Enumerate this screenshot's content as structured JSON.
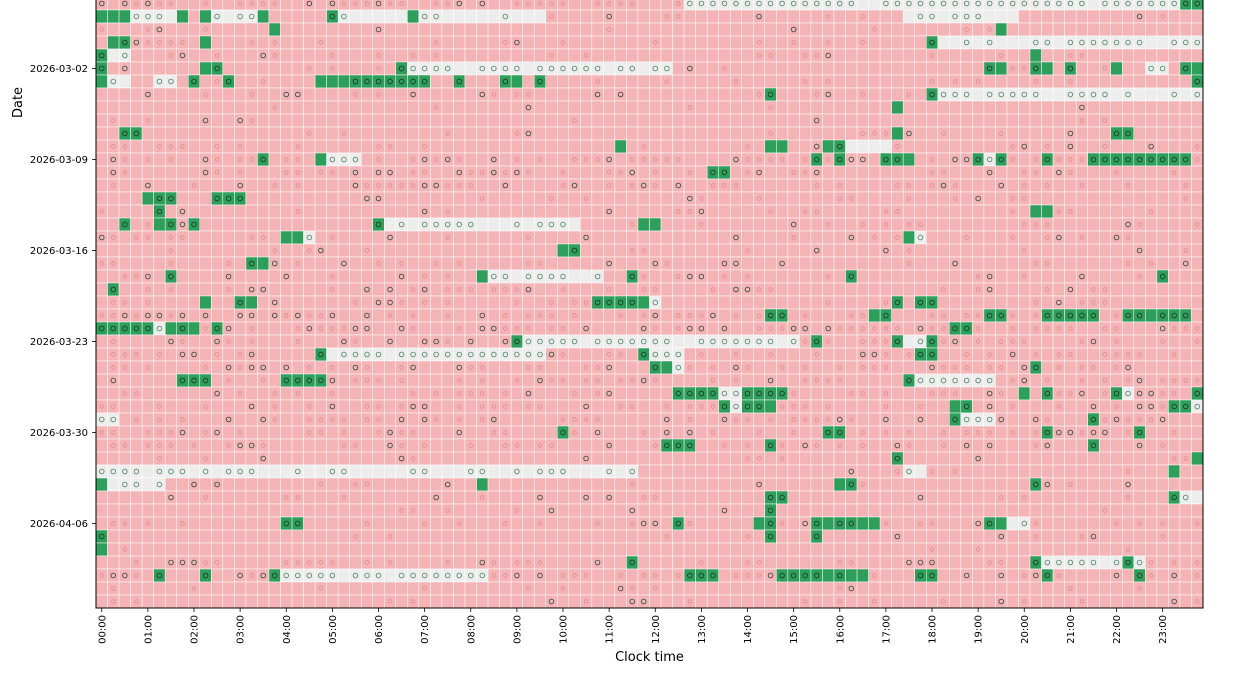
{
  "chart_data": {
    "type": "heatmap",
    "title": "",
    "xlabel": "Clock time",
    "ylabel": "Date",
    "x_tick_labels": [
      "00:00",
      "01:00",
      "02:00",
      "03:00",
      "04:00",
      "05:00",
      "06:00",
      "07:00",
      "08:00",
      "09:00",
      "10:00",
      "11:00",
      "12:00",
      "13:00",
      "14:00",
      "15:00",
      "16:00",
      "17:00",
      "18:00",
      "19:00",
      "20:00",
      "21:00",
      "22:00",
      "23:00"
    ],
    "y_tick_labels": [
      "2026-03-02",
      "2026-03-09",
      "2026-03-16",
      "2026-03-23",
      "2026-03-30",
      "2026-04-06"
    ],
    "bins_per_hour": 4,
    "n_rows": 47,
    "y_tick_rows": [
      5,
      12,
      19,
      26,
      33,
      40
    ],
    "legend": "none",
    "grid": true,
    "cell_colors": {
      "red": "#f4b3b5",
      "green": "#2e9e5b",
      "gray": "#ededed"
    },
    "marker_colors": {
      "on_red": "#e07f82",
      "on_green": "#1f3d2a",
      "on_gray": "#5a8d6c"
    },
    "states_note": "0 = red, 1 = green, 2 = gray; marker_density = fraction of cells with a small ring marker",
    "rows": [
      {
        "green": [
          [
            94,
            95
          ]
        ],
        "gray": [
          [
            51,
            94
          ]
        ],
        "marker_density": 0.6
      },
      {
        "green": [
          [
            0,
            2
          ],
          [
            7,
            7
          ],
          [
            9,
            9
          ],
          [
            14,
            14
          ],
          [
            20,
            20
          ],
          [
            27,
            27
          ]
        ],
        "gray": [
          [
            3,
            6
          ],
          [
            10,
            13
          ],
          [
            21,
            26
          ],
          [
            28,
            38
          ],
          [
            70,
            79
          ]
        ],
        "marker_density": 0.15
      },
      {
        "green": [
          [
            15,
            15
          ],
          [
            78,
            78
          ]
        ],
        "marker_density": 0.1
      },
      {
        "green": [
          [
            1,
            2
          ],
          [
            9,
            9
          ],
          [
            72,
            72
          ]
        ],
        "gray": [
          [
            73,
            95
          ]
        ],
        "marker_density": 0.15
      },
      {
        "green": [
          [
            0,
            0
          ],
          [
            81,
            81
          ]
        ],
        "gray": [
          [
            0,
            2
          ]
        ],
        "marker_density": 0.2
      },
      {
        "green": [
          [
            0,
            0
          ],
          [
            9,
            10
          ],
          [
            26,
            26
          ],
          [
            77,
            78
          ],
          [
            81,
            82
          ],
          [
            84,
            84
          ],
          [
            88,
            88
          ],
          [
            94,
            95
          ]
        ],
        "gray": [
          [
            26,
            49
          ],
          [
            91,
            92
          ]
        ],
        "marker_density": 0.2
      },
      {
        "green": [
          [
            0,
            0
          ],
          [
            8,
            8
          ],
          [
            11,
            11
          ],
          [
            19,
            28
          ],
          [
            31,
            31
          ],
          [
            35,
            36
          ],
          [
            38,
            38
          ],
          [
            95,
            95
          ]
        ],
        "gray": [
          [
            0,
            2
          ],
          [
            5,
            6
          ]
        ],
        "marker_density": 0.2
      },
      {
        "green": [
          [
            58,
            58
          ],
          [
            72,
            72
          ]
        ],
        "gray": [
          [
            73,
            95
          ]
        ],
        "marker_density": 0.25
      },
      {
        "green": [
          [
            69,
            69
          ]
        ],
        "marker_density": 0.1
      },
      {
        "green": [],
        "marker_density": 0.1
      },
      {
        "green": [
          [
            2,
            3
          ],
          [
            69,
            69
          ],
          [
            88,
            89
          ]
        ],
        "marker_density": 0.15
      },
      {
        "green": [
          [
            45,
            45
          ],
          [
            58,
            59
          ],
          [
            63,
            64
          ]
        ],
        "gray": [
          [
            65,
            68
          ]
        ],
        "marker_density": 0.2
      },
      {
        "green": [
          [
            14,
            14
          ],
          [
            19,
            19
          ],
          [
            62,
            62
          ],
          [
            64,
            64
          ],
          [
            68,
            70
          ],
          [
            76,
            76
          ],
          [
            78,
            78
          ],
          [
            82,
            82
          ],
          [
            86,
            88
          ],
          [
            88,
            94
          ]
        ],
        "gray": [
          [
            20,
            22
          ],
          [
            77,
            78
          ]
        ],
        "marker_density": 0.55
      },
      {
        "green": [
          [
            53,
            54
          ]
        ],
        "marker_density": 0.45
      },
      {
        "green": [],
        "marker_density": 0.4
      },
      {
        "green": [
          [
            4,
            6
          ],
          [
            10,
            12
          ]
        ],
        "marker_density": 0.2
      },
      {
        "green": [
          [
            5,
            5
          ],
          [
            81,
            82
          ]
        ],
        "marker_density": 0.15
      },
      {
        "green": [
          [
            2,
            2
          ],
          [
            5,
            6
          ],
          [
            8,
            8
          ],
          [
            24,
            24
          ],
          [
            47,
            48
          ]
        ],
        "gray": [
          [
            25,
            41
          ]
        ],
        "marker_density": 0.25
      },
      {
        "green": [
          [
            16,
            17
          ],
          [
            70,
            70
          ]
        ],
        "gray": [
          [
            18,
            18
          ],
          [
            71,
            71
          ]
        ],
        "marker_density": 0.3
      },
      {
        "green": [
          [
            40,
            41
          ]
        ],
        "marker_density": 0.15
      },
      {
        "green": [
          [
            13,
            13
          ],
          [
            14,
            14
          ]
        ],
        "marker_density": 0.3
      },
      {
        "green": [
          [
            6,
            6
          ],
          [
            33,
            33
          ],
          [
            46,
            46
          ],
          [
            65,
            65
          ],
          [
            92,
            92
          ]
        ],
        "gray": [
          [
            34,
            43
          ]
        ],
        "marker_density": 0.2
      },
      {
        "green": [
          [
            1,
            1
          ]
        ],
        "marker_density": 0.35
      },
      {
        "green": [
          [
            9,
            9
          ],
          [
            12,
            13
          ],
          [
            43,
            47
          ],
          [
            69,
            69
          ],
          [
            71,
            72
          ]
        ],
        "gray": [
          [
            48,
            48
          ]
        ],
        "marker_density": 0.3
      },
      {
        "green": [
          [
            58,
            59
          ],
          [
            67,
            68
          ],
          [
            77,
            78
          ],
          [
            82,
            82
          ],
          [
            83,
            86
          ],
          [
            89,
            90
          ],
          [
            91,
            94
          ]
        ],
        "gray": [
          [
            90,
            90
          ]
        ],
        "marker_density": 0.55
      },
      {
        "green": [
          [
            0,
            4
          ],
          [
            6,
            8
          ],
          [
            10,
            10
          ],
          [
            74,
            75
          ]
        ],
        "gray": [
          [
            5,
            5
          ]
        ],
        "marker_density": 0.6
      },
      {
        "green": [
          [
            36,
            36
          ],
          [
            62,
            62
          ],
          [
            69,
            69
          ],
          [
            72,
            72
          ]
        ],
        "gray": [
          [
            37,
            60
          ],
          [
            70,
            71
          ]
        ],
        "marker_density": 0.5
      },
      {
        "green": [
          [
            19,
            19
          ],
          [
            47,
            47
          ],
          [
            71,
            72
          ]
        ],
        "gray": [
          [
            20,
            38
          ],
          [
            48,
            50
          ]
        ],
        "marker_density": 0.5
      },
      {
        "green": [
          [
            48,
            49
          ],
          [
            81,
            81
          ]
        ],
        "gray": [
          [
            50,
            50
          ]
        ],
        "marker_density": 0.5
      },
      {
        "green": [
          [
            7,
            9
          ],
          [
            16,
            19
          ],
          [
            70,
            70
          ]
        ],
        "gray": [
          [
            71,
            77
          ]
        ],
        "marker_density": 0.5
      },
      {
        "green": [
          [
            50,
            53
          ],
          [
            56,
            59
          ],
          [
            80,
            80
          ],
          [
            82,
            82
          ],
          [
            88,
            88
          ],
          [
            95,
            95
          ]
        ],
        "gray": [
          [
            54,
            55
          ],
          [
            89,
            89
          ]
        ],
        "marker_density": 0.5
      },
      {
        "green": [
          [
            54,
            54
          ],
          [
            56,
            58
          ],
          [
            74,
            75
          ],
          [
            93,
            94
          ]
        ],
        "gray": [
          [
            55,
            55
          ],
          [
            95,
            95
          ]
        ],
        "marker_density": 0.5
      },
      {
        "green": [
          [
            74,
            74
          ],
          [
            86,
            86
          ]
        ],
        "gray": [
          [
            0,
            1
          ],
          [
            75,
            77
          ]
        ],
        "marker_density": 0.5
      },
      {
        "green": [
          [
            40,
            40
          ],
          [
            63,
            64
          ],
          [
            82,
            82
          ],
          [
            90,
            90
          ]
        ],
        "marker_density": 0.45
      },
      {
        "green": [
          [
            49,
            51
          ],
          [
            58,
            58
          ],
          [
            86,
            86
          ]
        ],
        "marker_density": 0.4
      },
      {
        "green": [
          [
            69,
            69
          ],
          [
            95,
            95
          ]
        ],
        "marker_density": 0.2
      },
      {
        "green": [
          [
            93,
            93
          ]
        ],
        "gray": [
          [
            0,
            46
          ],
          [
            70,
            71
          ]
        ],
        "marker_density": 0.15
      },
      {
        "green": [
          [
            0,
            0
          ],
          [
            33,
            33
          ],
          [
            64,
            65
          ],
          [
            81,
            81
          ]
        ],
        "gray": [
          [
            0,
            5
          ]
        ],
        "marker_density": 0.2
      },
      {
        "green": [
          [
            58,
            59
          ],
          [
            93,
            93
          ]
        ],
        "gray": [
          [
            94,
            95
          ]
        ],
        "marker_density": 0.15
      },
      {
        "green": [
          [
            58,
            58
          ]
        ],
        "marker_density": 0.1
      },
      {
        "green": [
          [
            16,
            17
          ],
          [
            50,
            50
          ],
          [
            57,
            58
          ],
          [
            62,
            67
          ],
          [
            77,
            78
          ]
        ],
        "gray": [
          [
            79,
            80
          ]
        ],
        "marker_density": 0.25
      },
      {
        "green": [
          [
            0,
            0
          ],
          [
            58,
            58
          ],
          [
            62,
            62
          ]
        ],
        "marker_density": 0.2
      },
      {
        "green": [
          [
            0,
            0
          ]
        ],
        "marker_density": 0.1
      },
      {
        "green": [
          [
            46,
            46
          ],
          [
            81,
            81
          ],
          [
            89,
            89
          ]
        ],
        "gray": [
          [
            82,
            90
          ]
        ],
        "marker_density": 0.35
      },
      {
        "green": [
          [
            5,
            5
          ],
          [
            9,
            9
          ],
          [
            15,
            15
          ],
          [
            51,
            53
          ],
          [
            59,
            66
          ],
          [
            71,
            72
          ],
          [
            82,
            82
          ],
          [
            90,
            90
          ]
        ],
        "gray": [
          [
            16,
            33
          ]
        ],
        "marker_density": 0.45
      },
      {
        "green": [],
        "marker_density": 0.2
      },
      {
        "green": [],
        "marker_density": 0.2
      }
    ]
  }
}
